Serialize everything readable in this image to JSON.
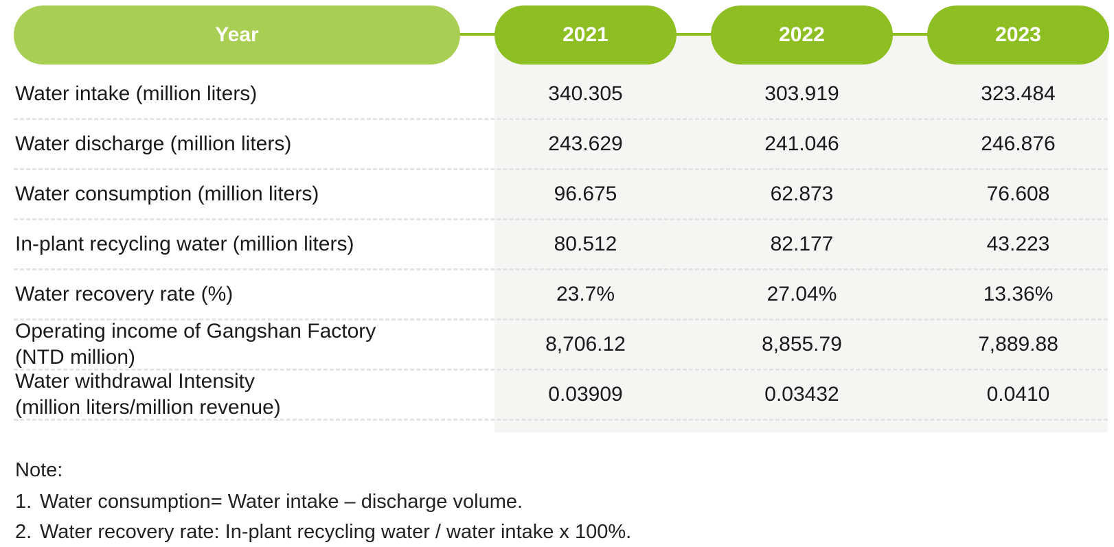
{
  "header": {
    "year_label": "Year",
    "years": [
      "2021",
      "2022",
      "2023"
    ]
  },
  "rows": [
    {
      "label": "Water intake (million liters)",
      "values": [
        "340.305",
        "303.919",
        "323.484"
      ]
    },
    {
      "label": "Water discharge (million liters)",
      "values": [
        "243.629",
        "241.046",
        "246.876"
      ]
    },
    {
      "label": "Water consumption (million liters)",
      "values": [
        "96.675",
        "62.873",
        "76.608"
      ]
    },
    {
      "label": "In-plant recycling water (million liters)",
      "values": [
        "80.512",
        "82.177",
        "43.223"
      ]
    },
    {
      "label": "Water recovery rate (%)",
      "values": [
        "23.7%",
        "27.04%",
        "13.36%"
      ]
    },
    {
      "label": "Operating income of Gangshan Factory\n(NTD million)",
      "values": [
        "8,706.12",
        "8,855.79",
        "7,889.88"
      ]
    },
    {
      "label": "Water withdrawal Intensity\n(million liters/million revenue)",
      "values": [
        "0.03909",
        "0.03432",
        "0.0410"
      ]
    }
  ],
  "notes": {
    "title": "Note:",
    "items": [
      {
        "num": "1.",
        "text": "Water consumption= Water intake – discharge volume."
      },
      {
        "num": "2.",
        "text": "Water recovery rate: In-plant recycling water / water intake x 100%."
      }
    ]
  },
  "colors": {
    "year_pill": "#a8ce54",
    "year_value_pill": "#8dbf23",
    "column_bg": "#f5f5f4"
  }
}
